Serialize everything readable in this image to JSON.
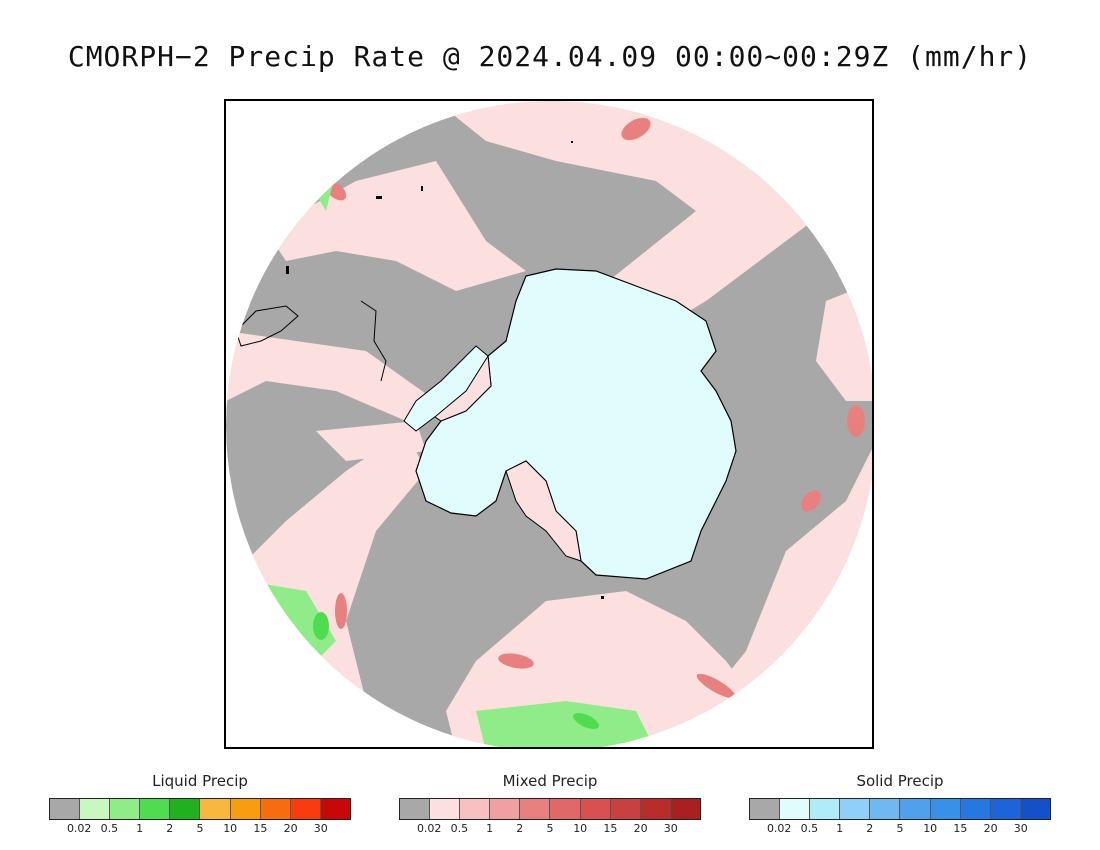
{
  "title": "CMORPH−2 Precip Rate @ 2024.04.09 00:00~00:29Z (mm/hr)",
  "map": {
    "projection": "south-polar-stereographic",
    "ocean_no_precip_color": "#a8a8a8",
    "antarctic_ice_color": "#e0fcfc",
    "coastline_color": "#000000"
  },
  "legends": [
    {
      "title": "Liquid Precip",
      "colors": [
        "#a8a8a8",
        "#c8f8c0",
        "#90ec88",
        "#50dc50",
        "#20b020",
        "#f8b840",
        "#f89c10",
        "#f86c10",
        "#f83c10",
        "#c80808"
      ],
      "ticks": [
        "0.02",
        "0.5",
        "1",
        "2",
        "5",
        "10",
        "15",
        "20",
        "30"
      ]
    },
    {
      "title": "Mixed Precip",
      "colors": [
        "#a8a8a8",
        "#fce0e0",
        "#f8c0c0",
        "#f0a0a0",
        "#e88080",
        "#e06868",
        "#d85050",
        "#c84040",
        "#b82c2c",
        "#a82020"
      ],
      "ticks": [
        "0.02",
        "0.5",
        "1",
        "2",
        "5",
        "10",
        "15",
        "20",
        "30"
      ]
    },
    {
      "title": "Solid Precip",
      "colors": [
        "#a8a8a8",
        "#e0fcfc",
        "#b0ecf8",
        "#90d0f8",
        "#70b8f0",
        "#50a0ec",
        "#3890e8",
        "#2478e0",
        "#1c64d8",
        "#1450c8"
      ],
      "ticks": [
        "0.02",
        "0.5",
        "1",
        "2",
        "5",
        "10",
        "15",
        "20",
        "30"
      ]
    }
  ]
}
